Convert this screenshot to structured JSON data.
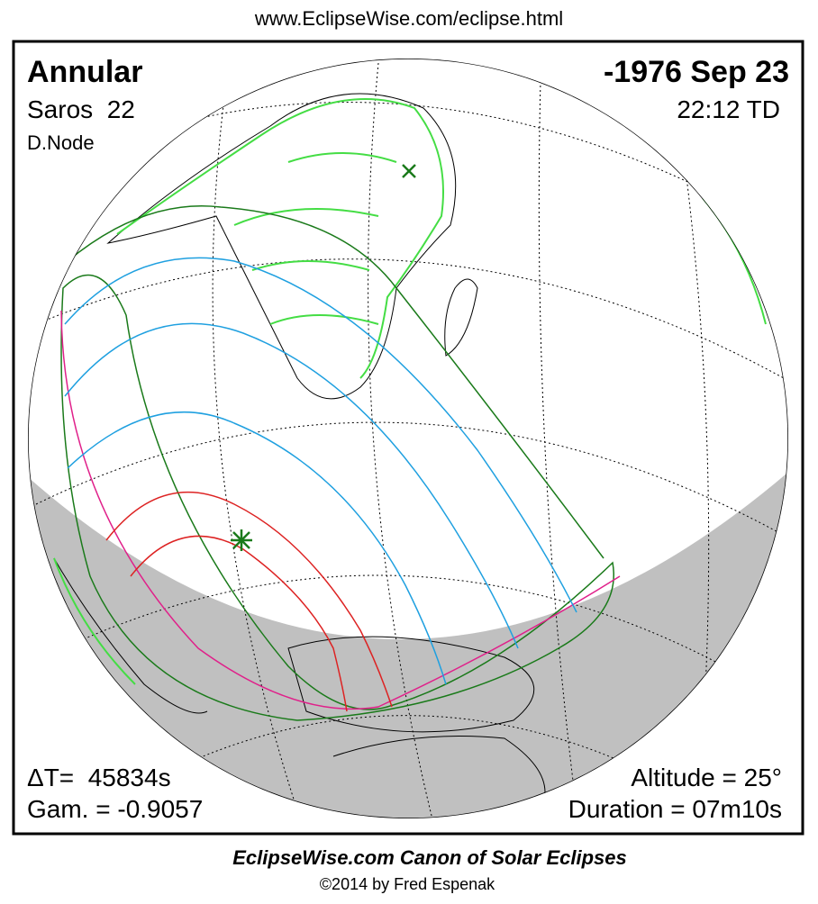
{
  "header": {
    "url": "www.EclipseWise.com/eclipse.html"
  },
  "eclipse": {
    "type": "Annular",
    "saros": "Saros  22",
    "node": "D.Node",
    "date": "-1976 Sep 23",
    "time": "22:12 TD"
  },
  "parameters": {
    "delta_t": "ΔT=  45834s",
    "gamma": "Gam. = -0.9057",
    "altitude": "Altitude = 25°",
    "duration": "Duration = 07m10s"
  },
  "footer": {
    "title": "EclipseWise.com Canon of Solar Eclipses",
    "copyright": "©2014 by Fred Espenak"
  }
}
